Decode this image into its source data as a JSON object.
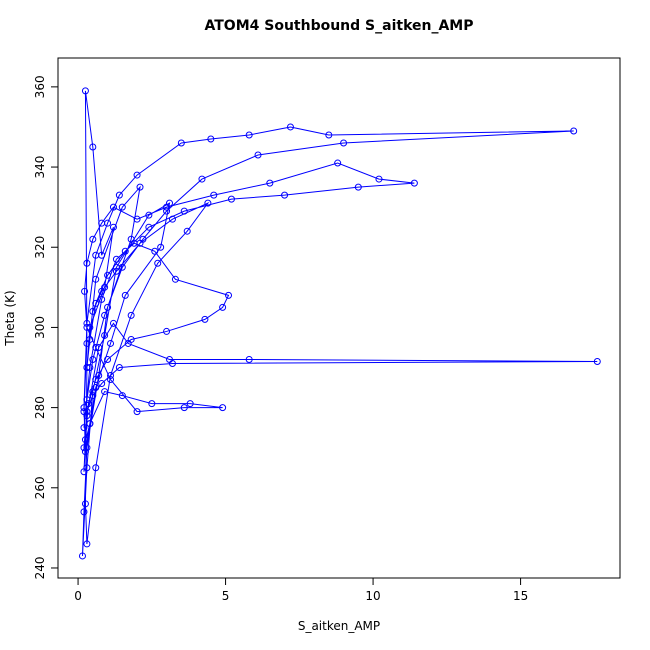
{
  "chart_data": {
    "type": "line",
    "title": "ATOM4 Southbound S_aitken_AMP",
    "x_label": "S_aitken_AMP",
    "y_label": "Theta (K)",
    "color": "#0000ff",
    "marker": "circle",
    "xlim": [
      -0.68,
      18.37
    ],
    "ylim": [
      237.5,
      367.2
    ],
    "xticks": [
      0,
      5,
      10,
      15
    ],
    "yticks": [
      240,
      260,
      280,
      300,
      320,
      340,
      360
    ],
    "x": [
      0.2,
      0.3,
      0.25,
      0.5,
      0.8,
      1.2,
      0.9,
      0.4,
      0.3,
      0.6,
      1.5,
      2.1,
      1.8,
      1.0,
      0.7,
      0.3,
      0.2,
      0.15,
      0.3,
      0.5,
      0.9,
      1.3,
      2.4,
      3.1,
      2.8,
      1.6,
      1.1,
      0.6,
      0.4,
      0.25,
      0.2,
      0.3,
      0.6,
      1.0,
      1.4,
      2.0,
      3.5,
      4.5,
      5.8,
      7.2,
      8.5,
      16.8,
      9.0,
      6.1,
      4.2,
      3.0,
      2.2,
      1.5,
      0.9,
      0.5,
      0.3,
      0.2,
      0.4,
      0.8,
      1.3,
      1.9,
      2.6,
      3.3,
      5.1,
      4.9,
      4.3,
      3.0,
      1.8,
      1.0,
      0.6,
      0.35,
      0.25,
      0.2,
      0.3,
      0.7,
      1.2,
      1.7,
      3.1,
      5.8,
      17.6,
      3.2,
      1.4,
      0.8,
      0.5,
      0.3,
      0.2,
      0.4,
      0.9,
      1.5,
      2.5,
      3.8,
      4.9,
      3.6,
      2.0,
      1.1,
      0.6,
      0.3,
      0.22,
      0.3,
      0.5,
      0.8,
      1.2,
      2.0,
      3.0,
      4.6,
      6.5,
      8.8,
      10.2,
      11.4,
      9.5,
      7.0,
      5.2,
      3.6,
      2.4,
      1.6,
      1.0,
      0.6,
      0.4,
      0.3,
      0.25,
      0.3,
      0.6,
      1.1,
      1.8,
      2.7,
      3.7,
      4.4,
      3.2,
      2.1,
      1.3,
      0.8,
      0.5
    ],
    "values": [
      279,
      296,
      359,
      345,
      318,
      325,
      310,
      300,
      290,
      312,
      330,
      335,
      322,
      305,
      288,
      270,
      254,
      243,
      265,
      284,
      298,
      315,
      328,
      331,
      320,
      308,
      296,
      285,
      276,
      269,
      280,
      301,
      318,
      326,
      333,
      338,
      346,
      347,
      348,
      350,
      348,
      349,
      346,
      343,
      337,
      329,
      322,
      315,
      303,
      292,
      282,
      275,
      290,
      307,
      317,
      321,
      319,
      312,
      308,
      305,
      302,
      299,
      297,
      292,
      287,
      281,
      272,
      264,
      278,
      295,
      301,
      296,
      292,
      292,
      291.5,
      291,
      290,
      286,
      283,
      279,
      270,
      276,
      284,
      283,
      281,
      281,
      280,
      280,
      279,
      287,
      295,
      300,
      309,
      316,
      322,
      326,
      330,
      327,
      330,
      333,
      336,
      341,
      337,
      336,
      335,
      333,
      332,
      329,
      325,
      319,
      313,
      306,
      297,
      290,
      256,
      246,
      265,
      288,
      303,
      316,
      324,
      331,
      327,
      321,
      314,
      309,
      304
    ]
  }
}
